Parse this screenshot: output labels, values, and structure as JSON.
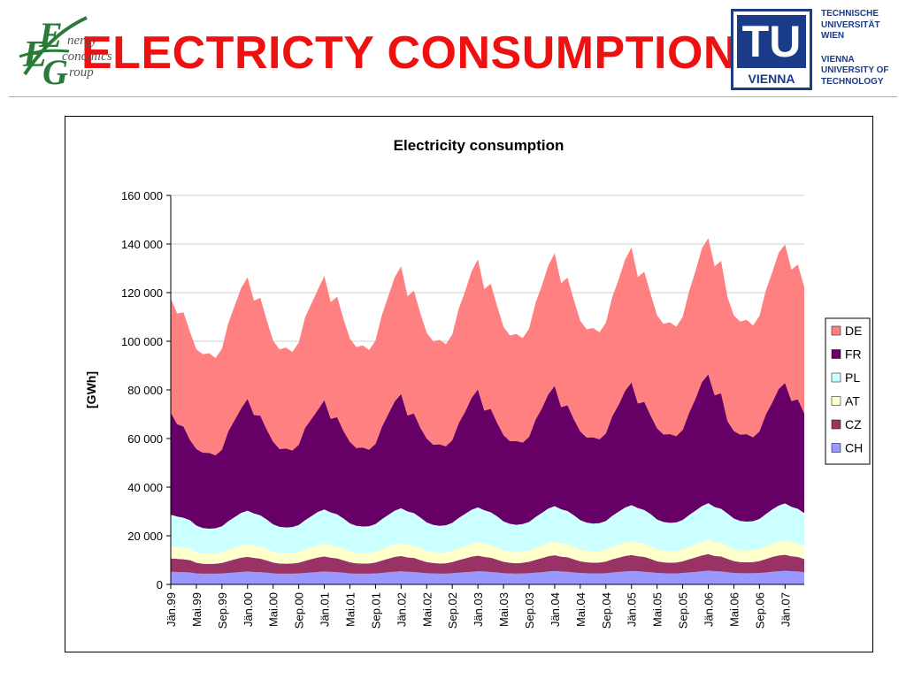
{
  "slide": {
    "title": "ELECTRICTY CONSUMPTION"
  },
  "logos": {
    "eeg": {
      "letters": [
        "E",
        "E",
        "G"
      ],
      "words": [
        "nergy",
        "conomics",
        "roup"
      ]
    },
    "tu": {
      "mark": "TU",
      "vienna": "VIENNA",
      "lines_de": [
        "TECHNISCHE",
        "UNIVERSITÄT",
        "WIEN"
      ],
      "lines_en": [
        "VIENNA",
        "UNIVERSITY OF",
        "TECHNOLOGY"
      ]
    }
  },
  "chart_data": {
    "type": "area",
    "stacked": true,
    "title": "Electricity consumption",
    "ylabel": "[GWh]",
    "ylim": [
      0,
      160000
    ],
    "yticks": [
      0,
      20000,
      40000,
      60000,
      80000,
      100000,
      120000,
      140000,
      160000
    ],
    "ytick_labels": [
      "0",
      "20 000",
      "40 000",
      "60 000",
      "80 000",
      "100 000",
      "120 000",
      "140 000",
      "160 000"
    ],
    "x_labels": [
      "Jän.99",
      "Mai.99",
      "Sep.99",
      "Jän.00",
      "Mai.00",
      "Sep.00",
      "Jän.01",
      "Mai.01",
      "Sep.01",
      "Jän.02",
      "Mai.02",
      "Sep.02",
      "Jän.03",
      "Mai.03",
      "Sep.03",
      "Jän.04",
      "Mai.04",
      "Sep.04",
      "Jän.05",
      "Mai.05",
      "Sep.05",
      "Jän.06",
      "Mai.06",
      "Sep.06",
      "Jän.07"
    ],
    "n_months": 100,
    "grid": "horizontal",
    "legend_position": "right",
    "series": [
      {
        "name": "CH",
        "color": "#9999ff",
        "values": [
          5200,
          5100,
          5000,
          4900,
          4500,
          4400,
          4400,
          4400,
          4500,
          4700,
          4900,
          5100,
          5300,
          5100,
          5000,
          4800,
          4500,
          4400,
          4400,
          4400,
          4500,
          4700,
          4900,
          5100,
          5300,
          5200,
          5000,
          4800,
          4500,
          4400,
          4400,
          4400,
          4500,
          4700,
          5000,
          5200,
          5400,
          5200,
          5100,
          4800,
          4600,
          4500,
          4400,
          4400,
          4600,
          4800,
          5000,
          5200,
          5400,
          5300,
          5100,
          4900,
          4600,
          4500,
          4400,
          4500,
          4600,
          4800,
          5000,
          5300,
          5500,
          5300,
          5200,
          4900,
          4700,
          4600,
          4500,
          4500,
          4600,
          4900,
          5100,
          5300,
          5500,
          5400,
          5200,
          5000,
          4700,
          4600,
          4500,
          4500,
          4700,
          4900,
          5100,
          5400,
          5700,
          5400,
          5300,
          5000,
          4700,
          4600,
          4600,
          4600,
          4700,
          4900,
          5200,
          5400,
          5600,
          5400,
          5300,
          5000
        ]
      },
      {
        "name": "CZ",
        "color": "#993366",
        "values": [
          5500,
          5400,
          5300,
          5100,
          4400,
          4100,
          4000,
          4100,
          4300,
          4900,
          5400,
          5900,
          6000,
          5800,
          5600,
          5000,
          4500,
          4200,
          4100,
          4200,
          4400,
          5000,
          5500,
          6000,
          6200,
          5800,
          5700,
          5100,
          4600,
          4300,
          4200,
          4200,
          4500,
          5100,
          5600,
          6100,
          6300,
          5900,
          5800,
          5200,
          4600,
          4300,
          4200,
          4300,
          4600,
          5200,
          5700,
          6200,
          6400,
          6000,
          5900,
          5300,
          4700,
          4400,
          4300,
          4400,
          4700,
          5300,
          5800,
          6300,
          6500,
          6100,
          6000,
          5400,
          4800,
          4500,
          4400,
          4500,
          4800,
          5400,
          5900,
          6400,
          6600,
          6200,
          6100,
          5500,
          4800,
          4500,
          4400,
          4500,
          4800,
          5400,
          6000,
          6500,
          6800,
          6300,
          6200,
          5500,
          4900,
          4600,
          4500,
          4600,
          4900,
          5500,
          6100,
          6500,
          6600,
          6200,
          6000,
          5400
        ]
      },
      {
        "name": "AT",
        "color": "#ffffcc",
        "values": [
          5000,
          4900,
          4800,
          4600,
          4300,
          4200,
          4200,
          4200,
          4300,
          4600,
          4800,
          5000,
          5200,
          5100,
          4900,
          4700,
          4400,
          4300,
          4300,
          4300,
          4400,
          4700,
          4900,
          5100,
          5300,
          5200,
          5000,
          4800,
          4500,
          4400,
          4400,
          4400,
          4500,
          4800,
          5000,
          5200,
          5400,
          5300,
          5100,
          4900,
          4600,
          4500,
          4500,
          4500,
          4600,
          4900,
          5100,
          5300,
          5500,
          5400,
          5200,
          5000,
          4700,
          4600,
          4600,
          4600,
          4700,
          5000,
          5200,
          5400,
          5600,
          5500,
          5300,
          5100,
          4800,
          4700,
          4700,
          4700,
          4800,
          5100,
          5300,
          5500,
          5700,
          5600,
          5400,
          5200,
          4900,
          4800,
          4800,
          4800,
          4900,
          5200,
          5400,
          5700,
          5900,
          5700,
          5500,
          5300,
          5000,
          4900,
          4900,
          4900,
          5000,
          5300,
          5500,
          5700,
          5900,
          5700,
          5500,
          5300
        ]
      },
      {
        "name": "PL",
        "color": "#ccffff",
        "values": [
          13000,
          12500,
          12300,
          11800,
          11000,
          10500,
          10300,
          10400,
          10800,
          11800,
          12600,
          13400,
          13800,
          13200,
          12900,
          12200,
          11300,
          10800,
          10600,
          10700,
          11100,
          12000,
          12800,
          13600,
          14000,
          13400,
          13100,
          12400,
          11500,
          11000,
          10800,
          10900,
          11300,
          12200,
          13000,
          13800,
          14200,
          13600,
          13300,
          12600,
          11700,
          11200,
          11000,
          11100,
          11500,
          12400,
          13200,
          14000,
          14400,
          13800,
          13500,
          12800,
          11900,
          11400,
          11200,
          11300,
          11700,
          12600,
          13400,
          14200,
          14600,
          14000,
          13700,
          13000,
          12100,
          11600,
          11400,
          11500,
          11900,
          12800,
          13600,
          14400,
          14800,
          14200,
          13900,
          13200,
          12300,
          11800,
          11600,
          11700,
          12100,
          13000,
          13800,
          14600,
          15000,
          14400,
          14100,
          13400,
          12500,
          12000,
          11800,
          11900,
          12300,
          13200,
          14000,
          14800,
          15200,
          14600,
          14300,
          13600
        ]
      },
      {
        "name": "FR",
        "color": "#660066",
        "values": [
          42000,
          38000,
          37500,
          33000,
          31500,
          31000,
          31200,
          30000,
          31500,
          37000,
          40000,
          43000,
          46000,
          40500,
          41000,
          37000,
          34000,
          32000,
          32500,
          31500,
          33000,
          38000,
          40000,
          42000,
          45000,
          38500,
          40000,
          36000,
          33500,
          32000,
          32500,
          31500,
          33000,
          38000,
          41500,
          45000,
          47000,
          39500,
          41000,
          37000,
          34500,
          33000,
          33500,
          32500,
          34000,
          39000,
          42000,
          46000,
          48500,
          41000,
          42500,
          38500,
          35500,
          34000,
          34500,
          33500,
          35000,
          40000,
          43000,
          47000,
          49500,
          42000,
          43500,
          39500,
          36500,
          35000,
          35500,
          34500,
          36000,
          41000,
          44000,
          48000,
          50500,
          43000,
          44500,
          40500,
          37500,
          36000,
          36500,
          35500,
          37000,
          42000,
          46000,
          51000,
          53000,
          46000,
          47500,
          38000,
          36000,
          35500,
          36000,
          34500,
          36000,
          41000,
          44000,
          48000,
          49500,
          43500,
          45000,
          41000
        ]
      },
      {
        "name": "DE",
        "color": "#ff8080",
        "values": [
          47000,
          45500,
          47000,
          44500,
          41000,
          40500,
          41000,
          40000,
          41500,
          44500,
          47000,
          49500,
          50000,
          47000,
          48500,
          45000,
          41500,
          41000,
          41500,
          40500,
          42000,
          45500,
          47500,
          49500,
          51000,
          48000,
          49500,
          46000,
          42500,
          41500,
          42000,
          41000,
          42500,
          46000,
          48500,
          51000,
          52500,
          49000,
          50500,
          47000,
          43500,
          42500,
          43000,
          42000,
          43500,
          47000,
          49500,
          52000,
          53500,
          50000,
          51500,
          48000,
          44500,
          43500,
          44000,
          43000,
          44500,
          48000,
          50500,
          53000,
          54500,
          51000,
          52500,
          49000,
          45500,
          44500,
          45000,
          44000,
          45500,
          49000,
          51500,
          54000,
          55500,
          52000,
          53500,
          50000,
          46500,
          45500,
          46000,
          45000,
          46500,
          50000,
          52500,
          55000,
          56000,
          53000,
          54500,
          51000,
          47500,
          46500,
          47000,
          46000,
          47500,
          51000,
          53500,
          56000,
          57000,
          54000,
          55500,
          52000
        ]
      }
    ]
  }
}
